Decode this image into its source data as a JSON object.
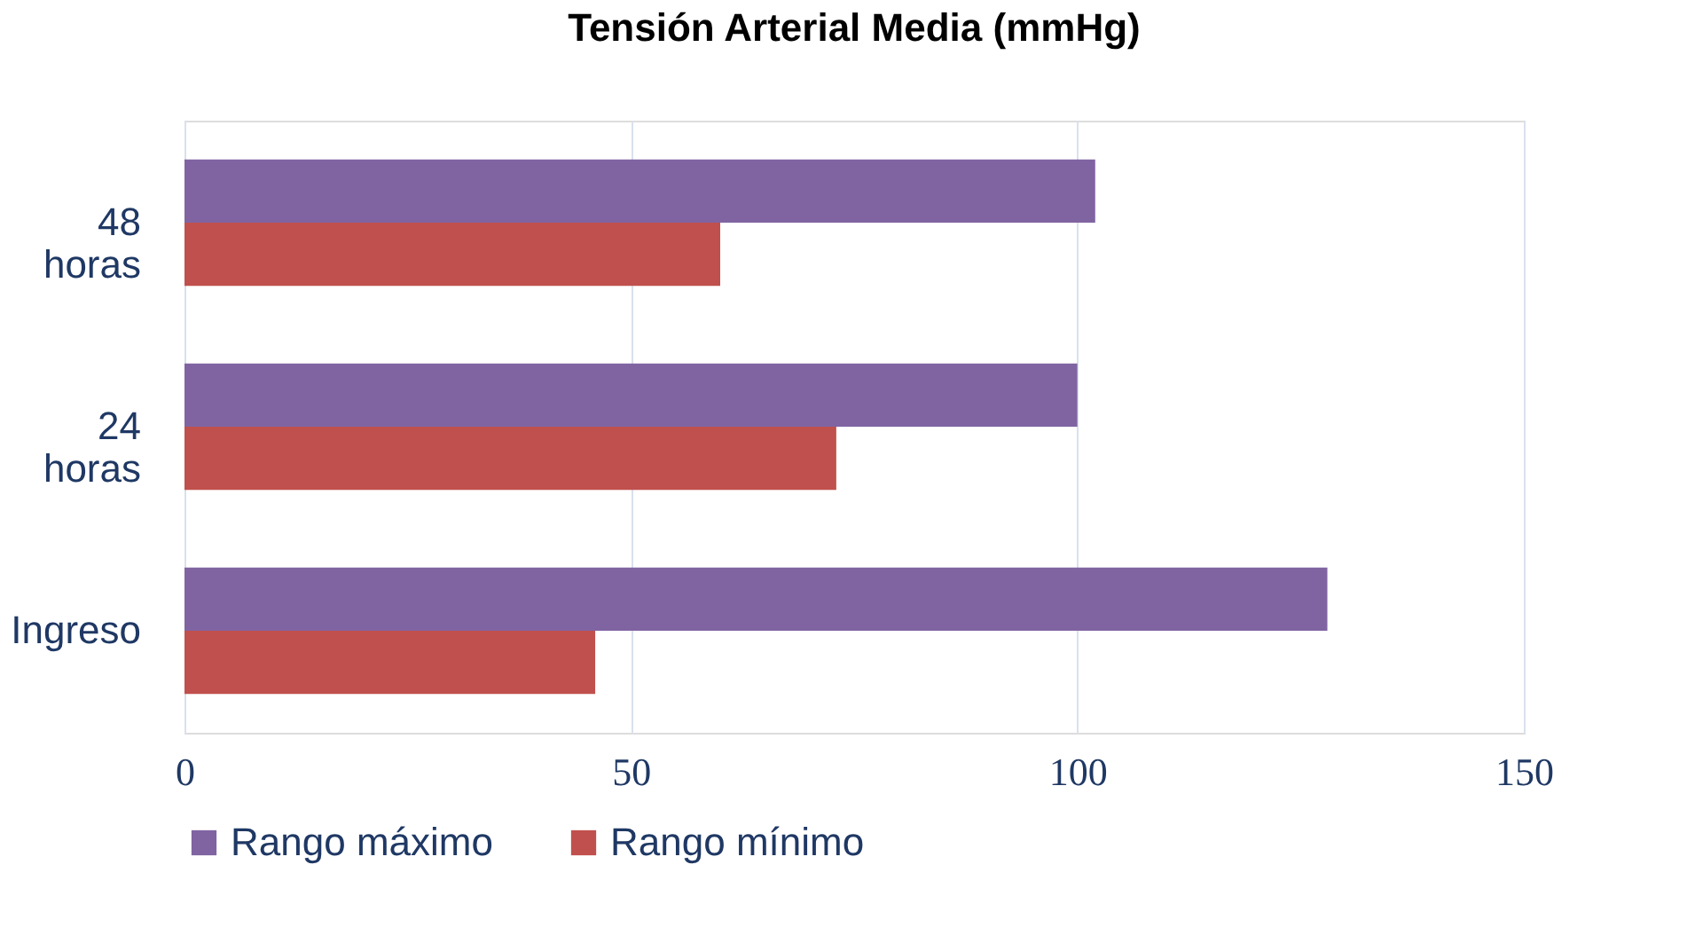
{
  "chart_data": {
    "type": "bar",
    "orientation": "horizontal",
    "title": "Tensión Arterial Media (mmHg)",
    "categories": [
      "48 horas",
      "24 horas",
      "Ingreso"
    ],
    "series": [
      {
        "name": "Rango máximo",
        "color": "#8064a2",
        "values": [
          102,
          100,
          128
        ]
      },
      {
        "name": "Rango mínimo",
        "color": "#c0504d",
        "values": [
          60,
          73,
          46
        ]
      }
    ],
    "xlim": [
      0,
      150
    ],
    "xticks": [
      0,
      50,
      100,
      150
    ],
    "grid": "x",
    "legend": "bottom"
  }
}
